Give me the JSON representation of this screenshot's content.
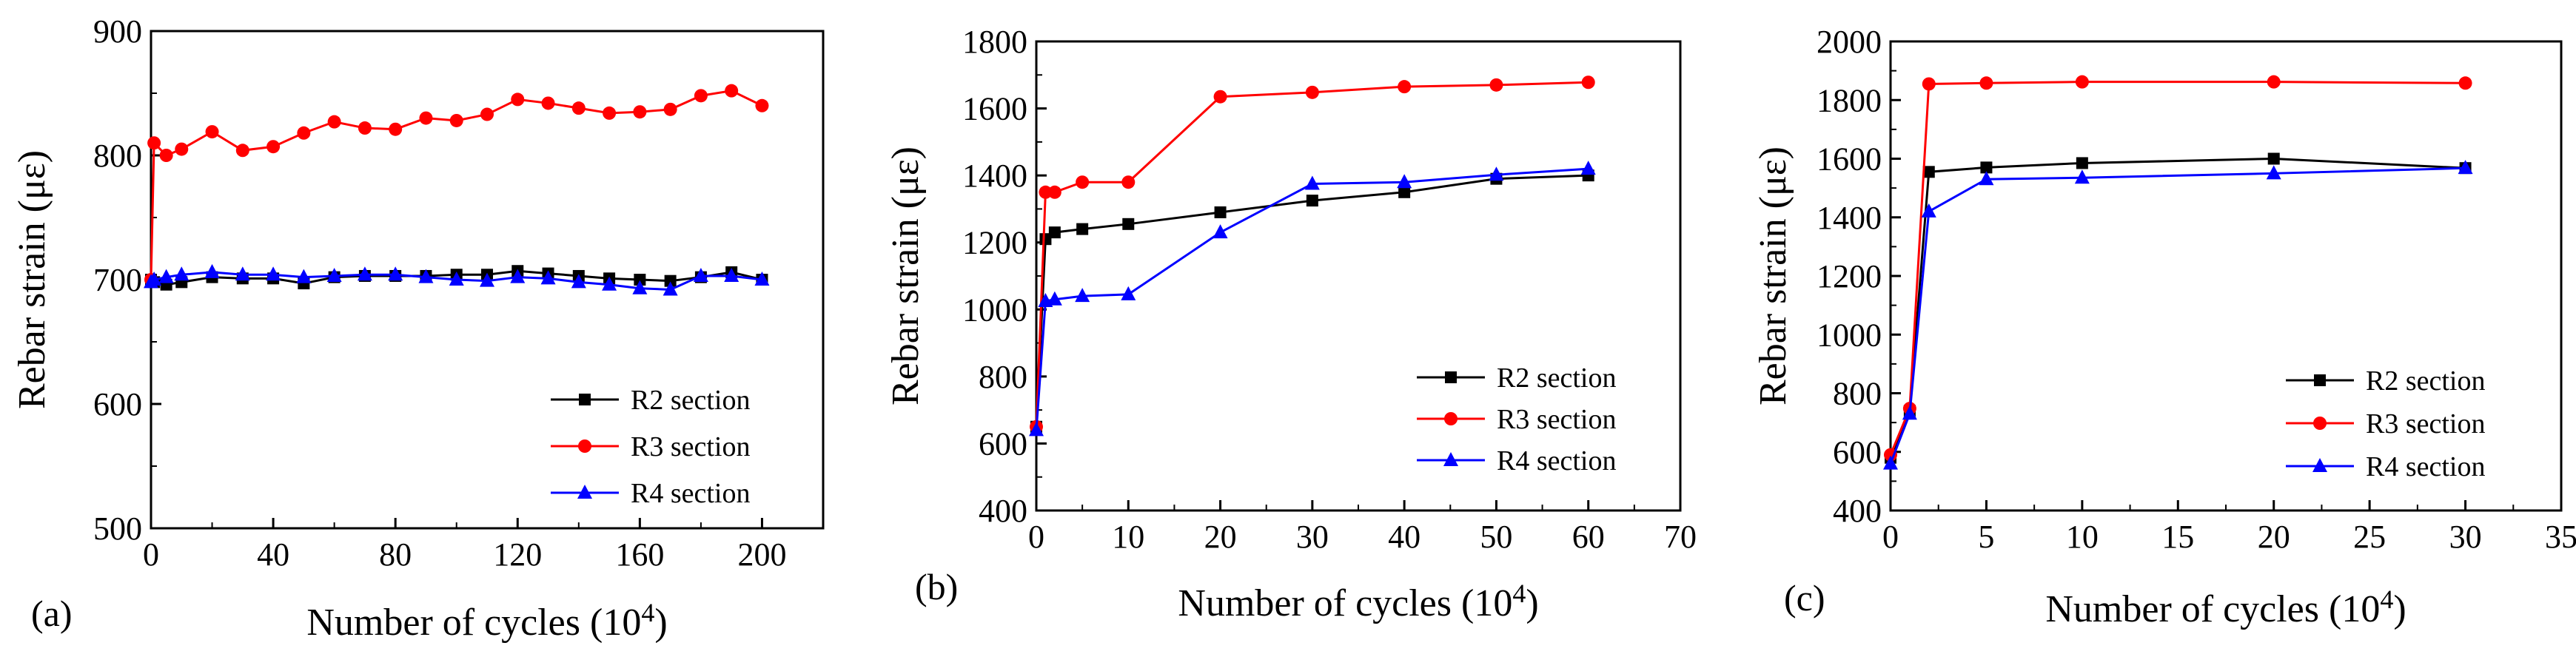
{
  "chart_data": [
    {
      "type": "line",
      "panel_label": "(a)",
      "xlabel": "Number of cycles (10",
      "xlabel_sup": "4",
      "xlabel_close": ")",
      "ylabel": "Rebar strain (με)",
      "xlim": [
        0,
        220
      ],
      "ylim": [
        500,
        900
      ],
      "xticks": [
        0,
        40,
        80,
        120,
        160,
        200
      ],
      "yticks": [
        500,
        600,
        700,
        800,
        900
      ],
      "legend_position": "lower-right",
      "series": [
        {
          "name": "R2 section",
          "color": "#000000",
          "marker": "square",
          "x": [
            0,
            1,
            5,
            10,
            20,
            30,
            40,
            50,
            60,
            70,
            80,
            90,
            100,
            110,
            120,
            130,
            140,
            150,
            160,
            170,
            180,
            190,
            200
          ],
          "y": [
            700,
            698,
            696,
            698,
            702,
            701,
            701,
            697,
            702,
            703,
            703,
            703,
            704,
            704,
            707,
            705,
            703,
            701,
            700,
            699,
            702,
            706,
            700
          ]
        },
        {
          "name": "R3 section",
          "color": "#ff0000",
          "marker": "circle",
          "x": [
            0,
            1,
            5,
            10,
            20,
            30,
            40,
            50,
            60,
            70,
            80,
            90,
            100,
            110,
            120,
            130,
            140,
            150,
            160,
            170,
            180,
            190,
            200
          ],
          "y": [
            700,
            810,
            800,
            805,
            819,
            804,
            807,
            818,
            827,
            822,
            821,
            830,
            828,
            833,
            845,
            842,
            838,
            834,
            835,
            837,
            848,
            852,
            840
          ]
        },
        {
          "name": "R4 section",
          "color": "#0000ff",
          "marker": "triangle",
          "x": [
            0,
            1,
            5,
            10,
            20,
            30,
            40,
            50,
            60,
            70,
            80,
            90,
            100,
            110,
            120,
            130,
            140,
            150,
            160,
            170,
            180,
            190,
            200
          ],
          "y": [
            698,
            700,
            702,
            704,
            706,
            704,
            704,
            702,
            703,
            704,
            704,
            702,
            700,
            699,
            702,
            701,
            698,
            696,
            693,
            692,
            703,
            703,
            700
          ]
        }
      ]
    },
    {
      "type": "line",
      "panel_label": "(b)",
      "xlabel": "Number of cycles (10",
      "xlabel_sup": "4",
      "xlabel_close": ")",
      "ylabel": "Rebar strain (με)",
      "xlim": [
        0,
        70
      ],
      "ylim": [
        400,
        1800
      ],
      "xticks": [
        0,
        10,
        20,
        30,
        40,
        50,
        60,
        70
      ],
      "yticks": [
        400,
        600,
        800,
        1000,
        1200,
        1400,
        1600,
        1800
      ],
      "legend_position": "lower-right",
      "series": [
        {
          "name": "R2 section",
          "color": "#000000",
          "marker": "square",
          "x": [
            0,
            1,
            2,
            5,
            10,
            20,
            30,
            40,
            50,
            60
          ],
          "y": [
            650,
            1210,
            1230,
            1240,
            1255,
            1290,
            1325,
            1350,
            1390,
            1400
          ]
        },
        {
          "name": "R3 section",
          "color": "#ff0000",
          "marker": "circle",
          "x": [
            0,
            1,
            2,
            5,
            10,
            20,
            30,
            40,
            50,
            60
          ],
          "y": [
            650,
            1350,
            1350,
            1380,
            1380,
            1635,
            1648,
            1665,
            1670,
            1678
          ]
        },
        {
          "name": "R4 section",
          "color": "#0000ff",
          "marker": "triangle",
          "x": [
            0,
            1,
            2,
            5,
            10,
            20,
            30,
            40,
            50,
            60
          ],
          "y": [
            640,
            1025,
            1030,
            1040,
            1045,
            1230,
            1375,
            1380,
            1402,
            1420
          ]
        }
      ]
    },
    {
      "type": "line",
      "panel_label": "(c)",
      "xlabel": "Number of cycles (10",
      "xlabel_sup": "4",
      "xlabel_close": ")",
      "ylabel": "Rebar strain (με)",
      "xlim": [
        0,
        35
      ],
      "ylim": [
        400,
        2000
      ],
      "xticks": [
        0,
        5,
        10,
        15,
        20,
        25,
        30,
        35
      ],
      "yticks": [
        400,
        600,
        800,
        1000,
        1200,
        1400,
        1600,
        1800,
        2000
      ],
      "legend_position": "lower-right",
      "series": [
        {
          "name": "R2 section",
          "color": "#000000",
          "marker": "square",
          "x": [
            0,
            1,
            2,
            5,
            10,
            20,
            30
          ],
          "y": [
            580,
            740,
            1555,
            1570,
            1585,
            1600,
            1568
          ]
        },
        {
          "name": "R3 section",
          "color": "#ff0000",
          "marker": "circle",
          "x": [
            0,
            1,
            2,
            5,
            10,
            20,
            30
          ],
          "y": [
            590,
            748,
            1855,
            1858,
            1862,
            1862,
            1858
          ]
        },
        {
          "name": "R4 section",
          "color": "#0000ff",
          "marker": "triangle",
          "x": [
            0,
            1,
            2,
            5,
            10,
            20,
            30
          ],
          "y": [
            560,
            730,
            1420,
            1530,
            1535,
            1550,
            1568
          ]
        }
      ]
    }
  ]
}
